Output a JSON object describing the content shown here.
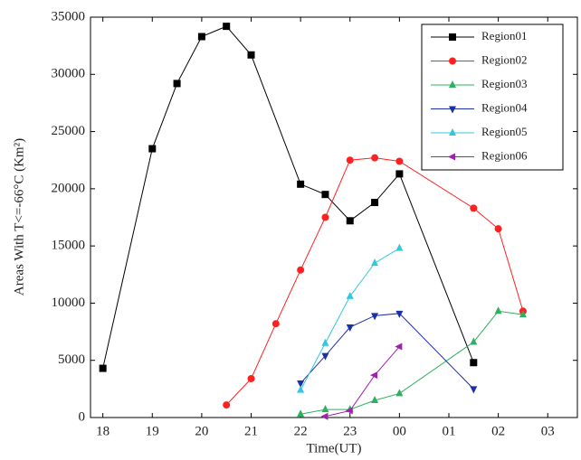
{
  "chart_data": {
    "type": "line",
    "xlabel": "Time(UT)",
    "ylabel": "Areas With T<=-66°C (Km²)",
    "xlim": [
      17.75,
      27.6
    ],
    "ylim": [
      0,
      35000
    ],
    "xticks": [
      18,
      19,
      20,
      21,
      22,
      23,
      {
        "value": 24,
        "label": "00"
      },
      {
        "value": 25,
        "label": "01"
      },
      {
        "value": 26,
        "label": "02"
      },
      {
        "value": 27,
        "label": "03"
      }
    ],
    "yticks": [
      0,
      5000,
      10000,
      15000,
      20000,
      25000,
      30000,
      35000
    ],
    "legend": "upper right",
    "series": [
      {
        "name": "Region01",
        "color": "#000000",
        "marker": "square",
        "x": [
          18,
          19,
          19.5,
          20,
          20.5,
          21,
          22,
          22.5,
          23,
          23.5,
          24,
          25.5
        ],
        "values": [
          4300,
          23500,
          29200,
          33300,
          34200,
          31700,
          20400,
          19500,
          17200,
          18800,
          21300,
          4800
        ]
      },
      {
        "name": "Region02",
        "color": "#ff2020",
        "marker": "circle",
        "x": [
          20.5,
          21,
          21.5,
          22,
          22.5,
          23,
          23.5,
          24,
          25.5,
          26,
          26.5
        ],
        "values": [
          1100,
          3400,
          8200,
          12900,
          17500,
          22500,
          22700,
          22400,
          18300,
          16500,
          9300
        ]
      },
      {
        "name": "Region03",
        "color": "#2eb060",
        "marker": "triangle-up",
        "x": [
          22,
          22.5,
          23,
          23.5,
          24,
          25.5,
          26,
          26.5
        ],
        "values": [
          300,
          700,
          700,
          1500,
          2100,
          6600,
          9300,
          9000
        ]
      },
      {
        "name": "Region04",
        "color": "#1c2fa8",
        "marker": "triangle-down",
        "x": [
          22,
          22.5,
          23,
          23.5,
          24,
          25.5
        ],
        "values": [
          3000,
          5400,
          7900,
          8900,
          9100,
          2500
        ]
      },
      {
        "name": "Region05",
        "color": "#30c8e0",
        "marker": "triangle-up",
        "x": [
          22,
          22.5,
          23,
          23.5,
          24
        ],
        "values": [
          2400,
          6500,
          10600,
          13500,
          14800
        ]
      },
      {
        "name": "Region06",
        "color": "#a020b0",
        "marker": "triangle-left",
        "x": [
          22.5,
          23,
          23.5,
          24
        ],
        "values": [
          100,
          600,
          3700,
          6200
        ]
      }
    ]
  }
}
